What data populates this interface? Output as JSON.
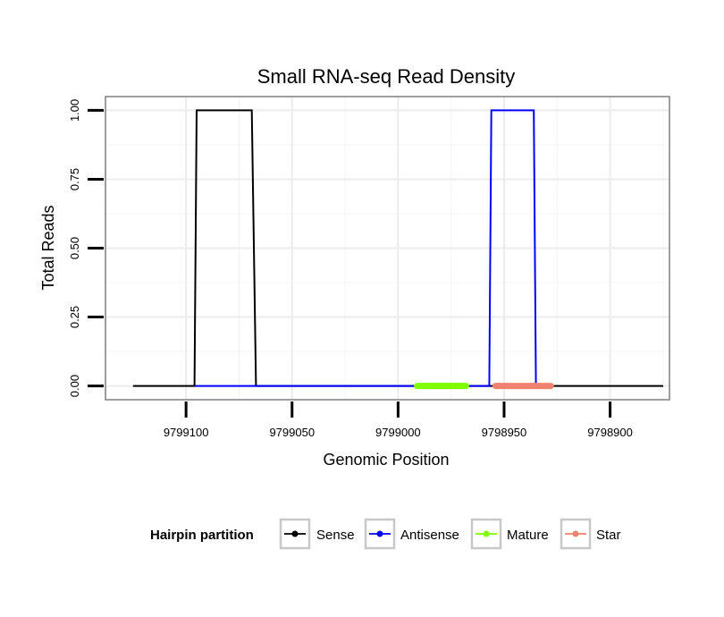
{
  "chart_data": {
    "type": "line",
    "title": "Small RNA-seq Read Density",
    "xlabel": "Genomic Position",
    "ylabel": "Total Reads",
    "x_reversed": true,
    "xlim": [
      9799138,
      9798872
    ],
    "ylim": [
      -0.05,
      1.05
    ],
    "x_ticks": [
      9799100,
      9799050,
      9799000,
      9798950,
      9798900
    ],
    "x_tick_labels": [
      "9799100",
      "9799050",
      "9799000",
      "9798950",
      "9798900"
    ],
    "y_ticks": [
      0,
      0.25,
      0.5,
      0.75,
      1
    ],
    "y_tick_labels": [
      "0.00",
      "0.25",
      "0.50",
      "0.75",
      "1.00"
    ],
    "grid": true,
    "legend_position": "bottom",
    "legend_title": "Hairpin partition",
    "series": [
      {
        "name": "Sense",
        "color": "#000000",
        "x": [
          9799125,
          9799096,
          9799095,
          9799069,
          9799067,
          9798875
        ],
        "y": [
          0,
          0,
          1,
          1,
          0,
          0
        ]
      },
      {
        "name": "Antisense",
        "color": "#0000ff",
        "x": [
          9799096,
          9799069,
          9798957,
          9798956,
          9798936,
          9798935
        ],
        "y": [
          0,
          0,
          0,
          1,
          1,
          0
        ]
      },
      {
        "name": "Mature",
        "color": "#7fff00",
        "x": [
          9798991,
          9798968
        ],
        "y": [
          0,
          0
        ]
      },
      {
        "name": "Star",
        "color": "#f08070",
        "x": [
          9798954,
          9798928
        ],
        "y": [
          0,
          0
        ]
      }
    ]
  }
}
